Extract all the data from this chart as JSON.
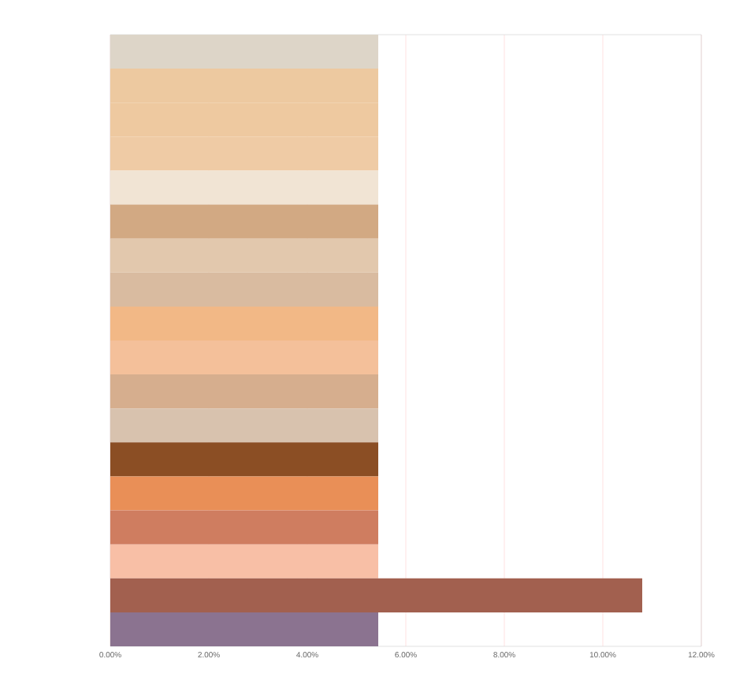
{
  "chart_data": {
    "type": "bar",
    "orientation": "horizontal",
    "categories": [
      null,
      null,
      null,
      null,
      null,
      null,
      null,
      null,
      null,
      null,
      null,
      null,
      null,
      null,
      null,
      null,
      null,
      null
    ],
    "values": [
      5.44,
      5.44,
      5.44,
      5.44,
      5.44,
      5.44,
      5.44,
      5.44,
      5.44,
      5.44,
      5.44,
      5.44,
      5.44,
      5.44,
      5.44,
      5.44,
      10.8,
      5.44
    ],
    "colors": [
      "#ddd5c8",
      "#edc9a0",
      "#eec9a0",
      "#efcba5",
      "#f1e4d4",
      "#d2a983",
      "#e2c8ad",
      "#d9bba0",
      "#f2b886",
      "#f4c09a",
      "#d6ae8e",
      "#d8c2ae",
      "#8b4e24",
      "#e98f57",
      "#cf7d60",
      "#f8bfa6",
      "#a2604f",
      "#8b7390"
    ],
    "xlim": [
      0,
      12
    ],
    "xticks": [
      {
        "value": 0,
        "label": "0.00%"
      },
      {
        "value": 2,
        "label": "2.00%"
      },
      {
        "value": 4,
        "label": "4.00%"
      },
      {
        "value": 6,
        "label": "6.00%"
      },
      {
        "value": 8,
        "label": "8.00%"
      },
      {
        "value": 10,
        "label": "10.00%"
      },
      {
        "value": 12,
        "label": "12.00%"
      }
    ],
    "grid": "x",
    "tick_labels": "x"
  }
}
